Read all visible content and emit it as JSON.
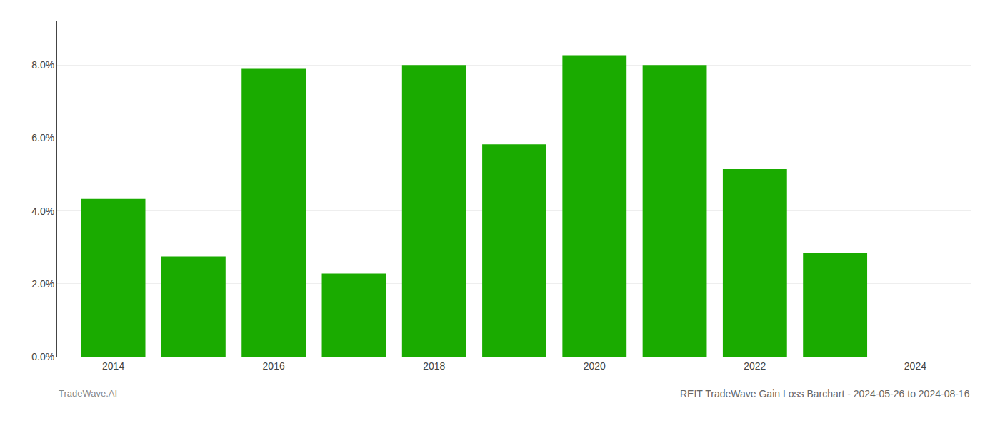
{
  "chart_data": {
    "type": "bar",
    "title": "REIT TradeWave Gain Loss Barchart - 2024-05-26 to 2024-08-16",
    "annotations": [
      "TradeWave.AI"
    ],
    "x": [
      2014,
      2015,
      2016,
      2017,
      2018,
      2019,
      2020,
      2021,
      2022,
      2023
    ],
    "values": [
      0.0433,
      0.0275,
      0.079,
      0.0228,
      0.08,
      0.0583,
      0.0827,
      0.08,
      0.0515,
      0.0285
    ],
    "color": "#1aab00",
    "xlim": [
      2013.3,
      2024.7
    ],
    "xticks": [
      2014,
      2016,
      2018,
      2020,
      2022,
      2024
    ],
    "ylim": [
      0,
      0.092
    ],
    "yticks": [
      {
        "value": 0.0,
        "label": "0.0%"
      },
      {
        "value": 0.02,
        "label": "2.0%"
      },
      {
        "value": 0.04,
        "label": "4.0%"
      },
      {
        "value": 0.06,
        "label": "6.0%"
      },
      {
        "value": 0.08,
        "label": "8.0%"
      }
    ],
    "grid": true
  }
}
